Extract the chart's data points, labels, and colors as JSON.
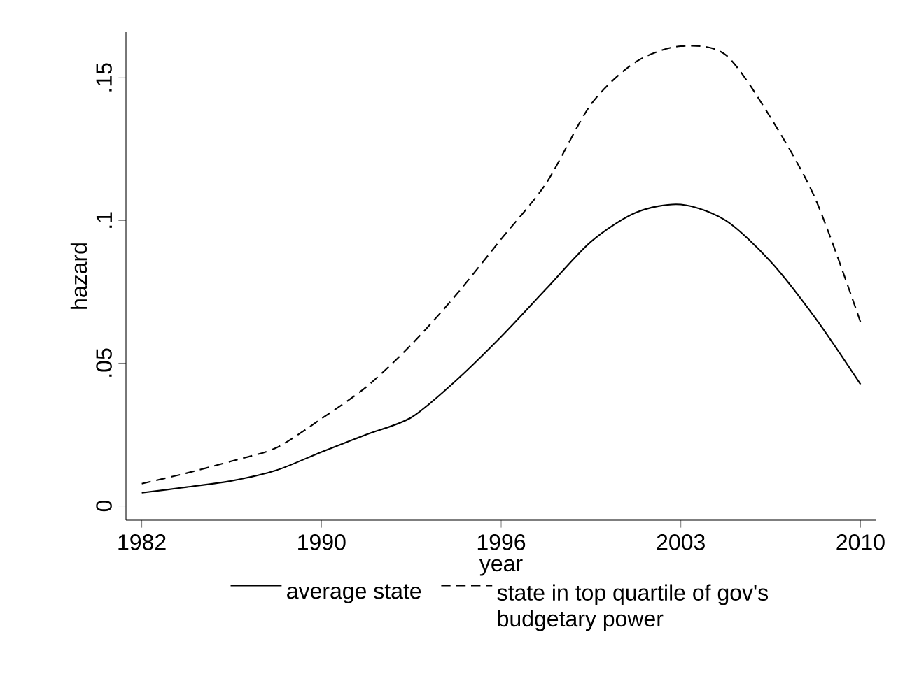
{
  "chart_data": {
    "type": "line",
    "xlabel": "year",
    "ylabel": "hazard",
    "legend": "bottom",
    "grid": false,
    "categories": [
      "1982",
      null,
      null,
      null,
      "1990",
      null,
      null,
      null,
      "1996",
      null,
      null,
      null,
      "2003",
      null,
      null,
      null,
      "2010"
    ],
    "ylim": [
      -0.005,
      0.166
    ],
    "yticks": [
      {
        "value": 0,
        "label": "0"
      },
      {
        "value": 0.05,
        "label": ".05"
      },
      {
        "value": 0.1,
        "label": ".1"
      },
      {
        "value": 0.15,
        "label": ".15"
      }
    ],
    "series": [
      {
        "name": "average state",
        "color": "#000000",
        "line_style": "solid",
        "values": [
          0.0046,
          0.0066,
          0.0088,
          0.0125,
          0.0189,
          0.025,
          0.031,
          0.044,
          0.0593,
          0.076,
          0.0926,
          0.1028,
          0.1056,
          0.1,
          0.0856,
          0.0657,
          0.0426
        ]
      },
      {
        "name": "state in top quartile of gov's budgetary power",
        "color": "#000000",
        "line_style": "dashed",
        "values": [
          0.0078,
          0.0115,
          0.0157,
          0.0204,
          0.0306,
          0.0417,
          0.0565,
          0.074,
          0.0935,
          0.113,
          0.1407,
          0.1556,
          0.1611,
          0.158,
          0.136,
          0.1074,
          0.0644
        ]
      }
    ]
  }
}
